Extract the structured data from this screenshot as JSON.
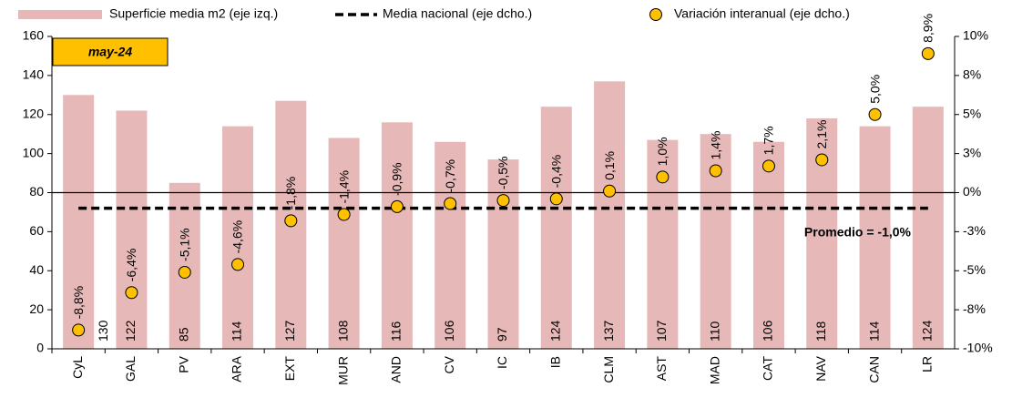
{
  "chart_data": {
    "type": "bar",
    "categories": [
      "CyL",
      "GAL",
      "PV",
      "ARA",
      "EXT",
      "MUR",
      "AND",
      "CV",
      "IC",
      "IB",
      "CLM",
      "AST",
      "MAD",
      "CAT",
      "NAV",
      "CAN",
      "LR"
    ],
    "series": [
      {
        "name": "Superficie media m2 (eje izq.)",
        "type": "bar",
        "color": "#e6b9b8",
        "values": [
          130,
          122,
          85,
          114,
          127,
          108,
          116,
          106,
          97,
          124,
          137,
          107,
          110,
          106,
          118,
          114,
          124
        ]
      },
      {
        "name": "Media nacional (eje dcho.)",
        "type": "line",
        "axis": "y2",
        "color": "#000000",
        "dashed": true,
        "value": -1.0
      },
      {
        "name": "Variación interanual (eje dcho.)",
        "type": "scatter",
        "axis": "y2",
        "color": "#ffc000",
        "values": [
          -8.8,
          -6.4,
          -5.1,
          -4.6,
          -1.8,
          -1.4,
          -0.9,
          -0.7,
          -0.5,
          -0.4,
          0.1,
          1.0,
          1.4,
          1.7,
          2.1,
          5.0,
          8.9
        ],
        "value_labels": [
          "-8,8%",
          "-6,4%",
          "-5,1%",
          "-4,6%",
          "-1,8%",
          "-1,4%",
          "-0,9%",
          "-0,7%",
          "-0,5%",
          "-0,4%",
          "0,1%",
          "1,0%",
          "1,4%",
          "1,7%",
          "2,1%",
          "5,0%",
          "8,9%"
        ]
      }
    ],
    "ylim": [
      0,
      160
    ],
    "yticks": [
      0,
      20,
      40,
      60,
      80,
      100,
      120,
      140,
      160
    ],
    "y2lim": [
      -10,
      10
    ],
    "y2ticks": [
      {
        "value": -10,
        "label": "-10%"
      },
      {
        "value": -7.5,
        "label": "-8%"
      },
      {
        "value": -5,
        "label": "-5%"
      },
      {
        "value": -2.5,
        "label": "-3%"
      },
      {
        "value": 0,
        "label": "0%"
      },
      {
        "value": 2.5,
        "label": "3%"
      },
      {
        "value": 5,
        "label": "5%"
      },
      {
        "value": 7.5,
        "label": "8%"
      },
      {
        "value": 10,
        "label": "10%"
      }
    ],
    "annotations": [
      {
        "text": "may-24"
      },
      {
        "text": "Promedio = -1,0%"
      }
    ]
  }
}
